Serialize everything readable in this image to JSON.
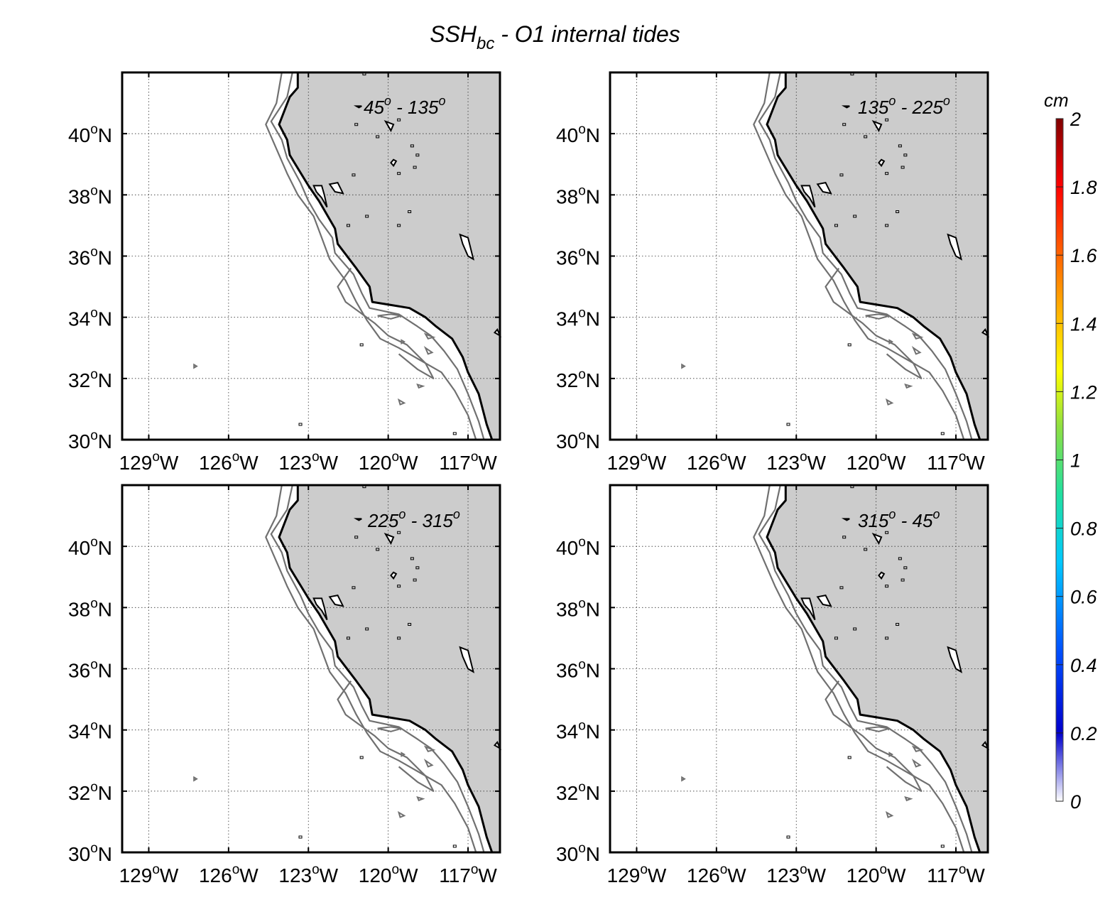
{
  "title": {
    "main": "SSH",
    "sub": "bc",
    "rest": " - O1 internal tides"
  },
  "panels": [
    {
      "id": "p1",
      "label_a": "45",
      "label_b": "135"
    },
    {
      "id": "p2",
      "label_a": "135",
      "label_b": "225"
    },
    {
      "id": "p3",
      "label_a": "225",
      "label_b": "315"
    },
    {
      "id": "p4",
      "label_a": "315",
      "label_b": "45"
    }
  ],
  "degree_symbol": "o",
  "label_separator": " - ",
  "map": {
    "lon_range": [
      -130.0,
      -115.8
    ],
    "lat_range": [
      30.0,
      42.0
    ],
    "lon_ticks": [
      -129,
      -126,
      -123,
      -120,
      -117
    ],
    "lat_ticks": [
      30,
      32,
      34,
      36,
      38,
      40
    ],
    "lon_tick_labels": [
      "129",
      "126",
      "123",
      "120",
      "117"
    ],
    "lat_tick_labels": [
      "30",
      "32",
      "34",
      "36",
      "38",
      "40"
    ],
    "lon_suffix": "W",
    "lat_suffix": "N",
    "grid": true,
    "land_color": "#cccccc",
    "ocean_color": "#ffffff",
    "coastline_color": "#000000",
    "isobath_color": "#707070"
  },
  "colorbar": {
    "unit": "cm",
    "min": 0,
    "max": 2,
    "ticks": [
      0,
      0.2,
      0.4,
      0.6,
      0.8,
      1,
      1.2,
      1.4,
      1.6,
      1.8,
      2
    ],
    "tick_labels": [
      "0",
      "0.2",
      "0.4",
      "0.6",
      "0.8",
      "1",
      "1.2",
      "1.4",
      "1.6",
      "1.8",
      "2"
    ],
    "colormap": "jet"
  }
}
